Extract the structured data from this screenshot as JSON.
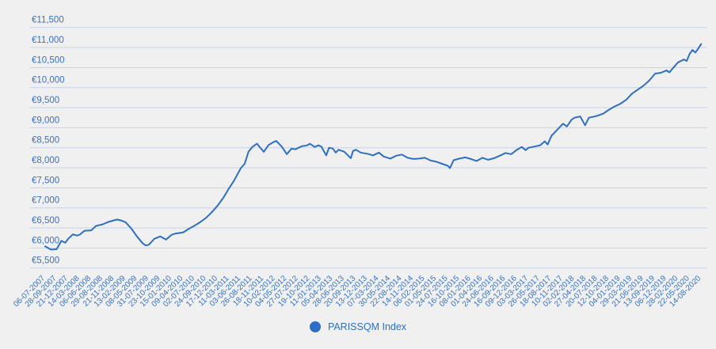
{
  "colors": {
    "background": "#f0f0f0",
    "grid": "#c7d3e8",
    "line": "#2d6fc4",
    "axis_label": "#3572c8",
    "legend_text": "#2d6fc4",
    "legend_marker": "#2d6fc4"
  },
  "legend": {
    "label": "PARISSQM Index"
  },
  "chart_data": {
    "type": "line",
    "title": "",
    "xlabel": "",
    "ylabel": "",
    "grid": "horizontal",
    "legend_position": "bottom-center",
    "ylim": [
      5500,
      11500
    ],
    "y_tick_step": 500,
    "y_ticks": [
      {
        "value": 11500,
        "label": "€11,500"
      },
      {
        "value": 11000,
        "label": "€11,000"
      },
      {
        "value": 10500,
        "label": "€10,500"
      },
      {
        "value": 10000,
        "label": "€10,000"
      },
      {
        "value": 9500,
        "label": "€9,500"
      },
      {
        "value": 9000,
        "label": "€9,000"
      },
      {
        "value": 8500,
        "label": "€8,500"
      },
      {
        "value": 8000,
        "label": "€8,000"
      },
      {
        "value": 7500,
        "label": "€7,500"
      },
      {
        "value": 7000,
        "label": "€7,000"
      },
      {
        "value": 6500,
        "label": "€6,500"
      },
      {
        "value": 6000,
        "label": "€6,000"
      },
      {
        "value": 5500,
        "label": "€5,500"
      }
    ],
    "x_tick_labels": [
      "06-07-2007",
      "28-09-2007",
      "21-12-2007",
      "14-03-2008",
      "06-06-2008",
      "29-08-2008",
      "21-11-2008",
      "13-02-2009",
      "08-05-2009",
      "31-07-2009",
      "23-10-2009",
      "15-01-2010",
      "09-04-2010",
      "02-07-2010",
      "24-09-2010",
      "17-12-2010",
      "11-03-2011",
      "03-06-2011",
      "26-08-2011",
      "18-11-2011",
      "10-02-2012",
      "04-05-2012",
      "27-07-2012",
      "19-10-2012",
      "11-01-2013",
      "05-04-2013",
      "28-06-2013",
      "20-09-2013",
      "13-12-2013",
      "07-03-2014",
      "30-05-2014",
      "22-08-2014",
      "14-11-2014",
      "06-02-2015",
      "01-05-2015",
      "24-07-2015",
      "16-10-2015",
      "08-01-2016",
      "01-04-2016",
      "24-06-2016",
      "16-09-2016",
      "09-12-2016",
      "03-03-2017",
      "26-05-2017",
      "18-08-2017",
      "10-11-2017",
      "02-02-2018",
      "27-04-2018",
      "20-07-2018",
      "12-10-2018",
      "04-01-2019",
      "29-03-2019",
      "21-06-2019",
      "13-09-2019",
      "06-12-2019",
      "28-02-2020",
      "22-05-2020",
      "14-08-2020"
    ],
    "series": [
      {
        "name": "PARISSQM Index",
        "unit": "EUR",
        "points": [
          [
            "06-07-2007",
            6040
          ],
          [
            "17-08-2007",
            5960
          ],
          [
            "28-09-2007",
            5970
          ],
          [
            "02-11-2007",
            6180
          ],
          [
            "30-11-2007",
            6130
          ],
          [
            "21-12-2007",
            6230
          ],
          [
            "25-01-2008",
            6340
          ],
          [
            "22-02-2008",
            6310
          ],
          [
            "14-03-2008",
            6330
          ],
          [
            "18-04-2008",
            6430
          ],
          [
            "06-06-2008",
            6440
          ],
          [
            "11-07-2008",
            6550
          ],
          [
            "29-08-2008",
            6590
          ],
          [
            "10-10-2008",
            6650
          ],
          [
            "21-11-2008",
            6690
          ],
          [
            "12-12-2008",
            6710
          ],
          [
            "16-01-2009",
            6680
          ],
          [
            "13-02-2009",
            6640
          ],
          [
            "27-03-2009",
            6480
          ],
          [
            "08-05-2009",
            6280
          ],
          [
            "19-06-2009",
            6110
          ],
          [
            "10-07-2009",
            6065
          ],
          [
            "31-07-2009",
            6080
          ],
          [
            "11-09-2009",
            6230
          ],
          [
            "23-10-2009",
            6290
          ],
          [
            "04-12-2009",
            6210
          ],
          [
            "15-01-2010",
            6330
          ],
          [
            "12-02-2010",
            6360
          ],
          [
            "09-04-2010",
            6390
          ],
          [
            "21-05-2010",
            6480
          ],
          [
            "02-07-2010",
            6560
          ],
          [
            "13-08-2010",
            6650
          ],
          [
            "24-09-2010",
            6755
          ],
          [
            "05-11-2010",
            6900
          ],
          [
            "17-12-2010",
            7060
          ],
          [
            "28-01-2011",
            7260
          ],
          [
            "11-03-2011",
            7500
          ],
          [
            "15-04-2011",
            7680
          ],
          [
            "03-06-2011",
            7990
          ],
          [
            "01-07-2011",
            8100
          ],
          [
            "29-07-2011",
            8400
          ],
          [
            "26-08-2011",
            8520
          ],
          [
            "30-09-2011",
            8600
          ],
          [
            "28-10-2011",
            8480
          ],
          [
            "18-11-2011",
            8400
          ],
          [
            "23-12-2011",
            8570
          ],
          [
            "27-01-2012",
            8640
          ],
          [
            "17-02-2012",
            8670
          ],
          [
            "30-03-2012",
            8520
          ],
          [
            "04-05-2012",
            8340
          ],
          [
            "08-06-2012",
            8480
          ],
          [
            "06-07-2012",
            8460
          ],
          [
            "27-07-2012",
            8500
          ],
          [
            "24-08-2012",
            8540
          ],
          [
            "28-09-2012",
            8560
          ],
          [
            "19-10-2012",
            8600
          ],
          [
            "23-11-2012",
            8520
          ],
          [
            "21-12-2012",
            8560
          ],
          [
            "11-01-2013",
            8530
          ],
          [
            "16-02-2013",
            8310
          ],
          [
            "08-03-2013",
            8500
          ],
          [
            "05-04-2013",
            8480
          ],
          [
            "26-04-2013",
            8380
          ],
          [
            "17-05-2013",
            8450
          ],
          [
            "28-06-2013",
            8400
          ],
          [
            "14-08-2013",
            8240
          ],
          [
            "30-08-2013",
            8420
          ],
          [
            "20-09-2013",
            8450
          ],
          [
            "25-10-2013",
            8380
          ],
          [
            "13-12-2013",
            8350
          ],
          [
            "24-01-2014",
            8310
          ],
          [
            "07-03-2014",
            8380
          ],
          [
            "11-04-2014",
            8280
          ],
          [
            "30-05-2014",
            8230
          ],
          [
            "11-07-2014",
            8300
          ],
          [
            "22-08-2014",
            8330
          ],
          [
            "03-10-2014",
            8250
          ],
          [
            "14-11-2014",
            8220
          ],
          [
            "26-12-2014",
            8230
          ],
          [
            "06-02-2015",
            8250
          ],
          [
            "20-03-2015",
            8180
          ],
          [
            "01-05-2015",
            8150
          ],
          [
            "12-06-2015",
            8100
          ],
          [
            "24-07-2015",
            8050
          ],
          [
            "07-08-2015",
            7990
          ],
          [
            "04-09-2015",
            8190
          ],
          [
            "16-10-2015",
            8230
          ],
          [
            "27-11-2015",
            8260
          ],
          [
            "08-01-2016",
            8220
          ],
          [
            "19-02-2016",
            8170
          ],
          [
            "01-04-2016",
            8250
          ],
          [
            "13-05-2016",
            8200
          ],
          [
            "24-06-2016",
            8240
          ],
          [
            "05-08-2016",
            8300
          ],
          [
            "16-09-2016",
            8370
          ],
          [
            "28-10-2016",
            8340
          ],
          [
            "09-12-2016",
            8450
          ],
          [
            "13-01-2017",
            8520
          ],
          [
            "10-02-2017",
            8440
          ],
          [
            "03-03-2017",
            8500
          ],
          [
            "14-04-2017",
            8530
          ],
          [
            "26-05-2017",
            8560
          ],
          [
            "30-06-2017",
            8660
          ],
          [
            "21-07-2017",
            8580
          ],
          [
            "18-08-2017",
            8800
          ],
          [
            "29-09-2017",
            8950
          ],
          [
            "10-11-2017",
            9100
          ],
          [
            "08-12-2017",
            9030
          ],
          [
            "12-01-2018",
            9200
          ],
          [
            "02-02-2018",
            9250
          ],
          [
            "16-03-2018",
            9280
          ],
          [
            "20-04-2018",
            9060
          ],
          [
            "18-05-2018",
            9250
          ],
          [
            "29-06-2018",
            9280
          ],
          [
            "20-07-2018",
            9300
          ],
          [
            "31-08-2018",
            9350
          ],
          [
            "12-10-2018",
            9450
          ],
          [
            "16-11-2018",
            9520
          ],
          [
            "04-01-2019",
            9600
          ],
          [
            "15-02-2019",
            9700
          ],
          [
            "29-03-2019",
            9850
          ],
          [
            "10-05-2019",
            9950
          ],
          [
            "21-06-2019",
            10050
          ],
          [
            "02-08-2019",
            10180
          ],
          [
            "13-09-2019",
            10350
          ],
          [
            "25-10-2019",
            10370
          ],
          [
            "06-12-2019",
            10430
          ],
          [
            "27-12-2019",
            10380
          ],
          [
            "07-02-2020",
            10550
          ],
          [
            "28-02-2020",
            10630
          ],
          [
            "10-04-2020",
            10700
          ],
          [
            "01-05-2020",
            10665
          ],
          [
            "22-05-2020",
            10840
          ],
          [
            "12-06-2020",
            10940
          ],
          [
            "03-07-2020",
            10875
          ],
          [
            "24-07-2020",
            10975
          ],
          [
            "14-08-2020",
            11085
          ]
        ]
      }
    ]
  }
}
